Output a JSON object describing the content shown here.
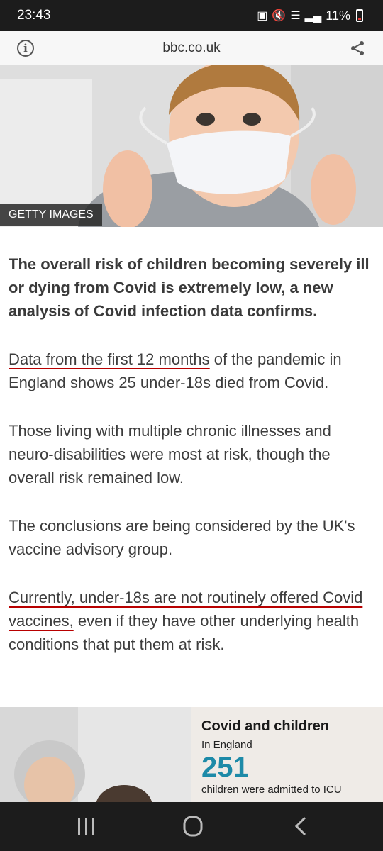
{
  "status_bar": {
    "time": "23:43",
    "battery_percent": "11%"
  },
  "browser": {
    "url": "bbc.co.uk"
  },
  "hero": {
    "caption": "GETTY IMAGES"
  },
  "article": {
    "lead": "The overall risk of children becoming severely ill or dying from Covid is extremely low, a new analysis of Covid infection data confirms.",
    "p1_link": "Data from the first 12 months",
    "p1_rest": " of the pandemic in England shows 25 under-18s died from Covid.",
    "p2": "Those living with multiple chronic illnesses and neuro-disabilities were most at risk, though the overall risk remained low.",
    "p3": "The conclusions are being considered by the UK's vaccine advisory group.",
    "p4_link": "Currently, under-18s are not routinely offered Covid vaccines,",
    "p4_rest": " even if they have other underlying health conditions that put them at risk."
  },
  "infographic": {
    "title": "Covid and children",
    "subtitle": "In England",
    "number": "251",
    "description": "children were admitted to ICU"
  },
  "colors": {
    "link_underline": "#b80000",
    "stat_number": "#1d8aa8"
  }
}
